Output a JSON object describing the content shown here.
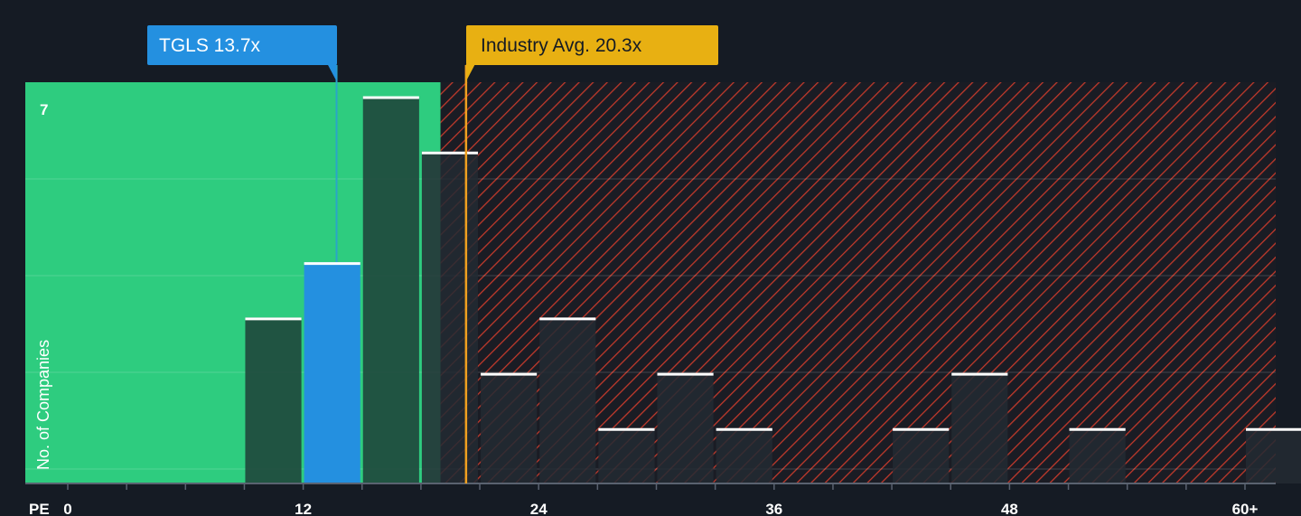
{
  "chart_data": {
    "type": "bar",
    "xlabel": "PE",
    "ylabel": "No. of Companies",
    "x_ticks": [
      0,
      12,
      24,
      36,
      48,
      60
    ],
    "x_tick_labels": [
      "0",
      "12",
      "24",
      "36",
      "48",
      "60+"
    ],
    "y_tick_labels": [
      "7"
    ],
    "xlim": [
      0,
      60
    ],
    "ylim": [
      0,
      7
    ],
    "bin_width": 3,
    "bins": [
      {
        "start": 9,
        "count": 3
      },
      {
        "start": 12,
        "count": 4,
        "highlight": true
      },
      {
        "start": 15,
        "count": 7
      },
      {
        "start": 18,
        "count": 6
      },
      {
        "start": 21,
        "count": 2
      },
      {
        "start": 24,
        "count": 3
      },
      {
        "start": 27,
        "count": 1
      },
      {
        "start": 30,
        "count": 2
      },
      {
        "start": 33,
        "count": 1
      },
      {
        "start": 42,
        "count": 1
      },
      {
        "start": 45,
        "count": 2
      },
      {
        "start": 51,
        "count": 1
      },
      {
        "start": 60,
        "count": 1
      }
    ],
    "company": {
      "ticker": "TGLS",
      "value": 13.7,
      "label": "TGLS 13.7x"
    },
    "industry_avg": {
      "value": 20.3,
      "label": "Industry Avg. 20.3x"
    },
    "colors": {
      "background": "#151b24",
      "undervalued_zone": "#2ecc7f",
      "overvalued_hatch": "#c0392b",
      "bar": "#1f4a3d",
      "bar_dark": "#232a33",
      "company_bar": "#2490e0",
      "company_label_bg": "#2490e0",
      "industry_label_bg": "#e8b012",
      "industry_line": "#f0a020",
      "cap": "#ffffff",
      "axis_text": "#ffffff"
    }
  }
}
